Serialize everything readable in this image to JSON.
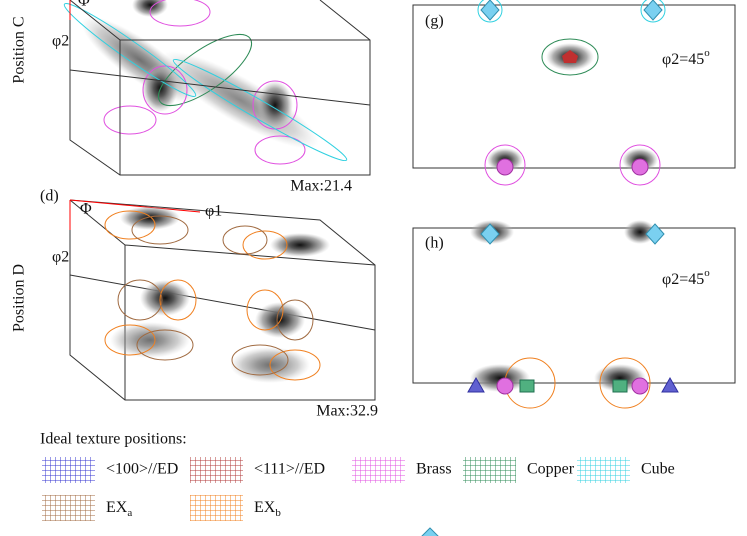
{
  "left_panels": [
    {
      "row_label": "Position C",
      "axes": [
        "Φ",
        "φ2"
      ],
      "max": "Max:21.4"
    },
    {
      "panel": "(d)",
      "row_label": "Position D",
      "axes": [
        "Φ",
        "φ1",
        "φ2"
      ],
      "max": "Max:32.9"
    }
  ],
  "right_panels": [
    {
      "panel": "(g)",
      "section": {
        "text": "φ2=45",
        "sup": "o"
      }
    },
    {
      "panel": "(h)",
      "section": {
        "text": "φ2=45",
        "sup": "o"
      }
    }
  ],
  "legend": {
    "title": "Ideal texture positions:",
    "items": [
      {
        "label": "<100>//ED",
        "color": "#3535d0"
      },
      {
        "label": "<111>//ED",
        "color": "#b03a3a"
      },
      {
        "label": "Brass",
        "color": "#e050e0"
      },
      {
        "label": "Copper",
        "color": "#2e8b57"
      },
      {
        "label": "Cube",
        "color": "#30d0e0"
      },
      {
        "label": {
          "text": "EX",
          "sub": "a"
        },
        "color": "#a06a40"
      },
      {
        "label": {
          "text": "EX",
          "sub": "b"
        },
        "color": "#f08020"
      }
    ]
  }
}
